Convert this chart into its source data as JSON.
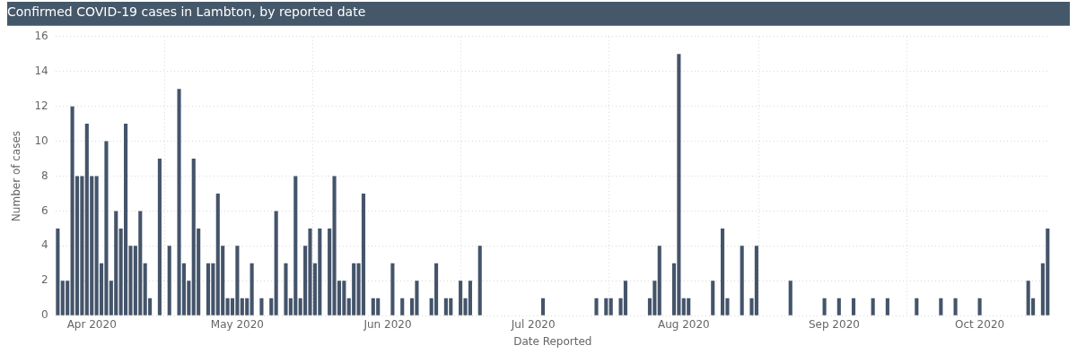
{
  "chart_data": {
    "type": "bar",
    "title": "Confirmed COVID-19 cases in Lambton, by reported date",
    "xlabel": "Date Reported",
    "ylabel": "Number of cases",
    "color": "#44546a",
    "x": [
      "2020-03-25",
      "2020-03-26",
      "2020-03-27",
      "2020-03-28",
      "2020-03-29",
      "2020-03-30",
      "2020-03-31",
      "2020-04-01",
      "2020-04-02",
      "2020-04-03",
      "2020-04-04",
      "2020-04-05",
      "2020-04-06",
      "2020-04-07",
      "2020-04-08",
      "2020-04-09",
      "2020-04-10",
      "2020-04-11",
      "2020-04-12",
      "2020-04-13",
      "2020-04-15",
      "2020-04-17",
      "2020-04-19",
      "2020-04-20",
      "2020-04-21",
      "2020-04-22",
      "2020-04-23",
      "2020-04-25",
      "2020-04-26",
      "2020-04-27",
      "2020-04-28",
      "2020-04-29",
      "2020-04-30",
      "2020-05-01",
      "2020-05-02",
      "2020-05-03",
      "2020-05-04",
      "2020-05-06",
      "2020-05-08",
      "2020-05-09",
      "2020-05-11",
      "2020-05-12",
      "2020-05-13",
      "2020-05-14",
      "2020-05-15",
      "2020-05-16",
      "2020-05-17",
      "2020-05-18",
      "2020-05-20",
      "2020-05-21",
      "2020-05-22",
      "2020-05-23",
      "2020-05-24",
      "2020-05-25",
      "2020-05-26",
      "2020-05-27",
      "2020-05-29",
      "2020-05-30",
      "2020-06-02",
      "2020-06-04",
      "2020-06-06",
      "2020-06-07",
      "2020-06-10",
      "2020-06-11",
      "2020-06-13",
      "2020-06-14",
      "2020-06-16",
      "2020-06-17",
      "2020-06-18",
      "2020-06-20",
      "2020-07-03",
      "2020-07-14",
      "2020-07-16",
      "2020-07-17",
      "2020-07-19",
      "2020-07-20",
      "2020-07-25",
      "2020-07-26",
      "2020-07-27",
      "2020-07-30",
      "2020-07-31",
      "2020-08-01",
      "2020-08-02",
      "2020-08-07",
      "2020-08-09",
      "2020-08-10",
      "2020-08-13",
      "2020-08-15",
      "2020-08-16",
      "2020-08-23",
      "2020-08-30",
      "2020-09-02",
      "2020-09-05",
      "2020-09-09",
      "2020-09-12",
      "2020-09-18",
      "2020-09-23",
      "2020-09-26",
      "2020-10-01",
      "2020-10-11",
      "2020-10-12",
      "2020-10-14",
      "2020-10-15"
    ],
    "values": [
      5,
      2,
      2,
      12,
      8,
      8,
      11,
      8,
      8,
      3,
      10,
      2,
      6,
      5,
      11,
      4,
      4,
      6,
      3,
      1,
      9,
      4,
      13,
      3,
      2,
      9,
      5,
      3,
      3,
      7,
      4,
      1,
      1,
      4,
      1,
      1,
      3,
      1,
      1,
      6,
      3,
      1,
      8,
      1,
      4,
      5,
      3,
      5,
      5,
      8,
      2,
      2,
      1,
      3,
      3,
      7,
      1,
      1,
      3,
      1,
      1,
      2,
      1,
      3,
      1,
      1,
      2,
      1,
      2,
      4,
      1,
      1,
      1,
      1,
      1,
      2,
      1,
      2,
      4,
      3,
      15,
      1,
      1,
      2,
      5,
      1,
      4,
      1,
      4,
      2,
      1,
      1,
      1,
      1,
      1,
      1,
      1,
      1,
      1,
      2,
      1,
      3,
      5
    ],
    "xlim": [
      "2020-03-24T12:00",
      "2020-10-15T12:00"
    ],
    "xticks": [
      {
        "value": "2020-04-01",
        "label": "Apr 2020"
      },
      {
        "value": "2020-05-01",
        "label": "May 2020"
      },
      {
        "value": "2020-06-01",
        "label": "Jun 2020"
      },
      {
        "value": "2020-07-01",
        "label": "Jul 2020"
      },
      {
        "value": "2020-08-01",
        "label": "Aug 2020"
      },
      {
        "value": "2020-09-01",
        "label": "Sep 2020"
      },
      {
        "value": "2020-10-01",
        "label": "Oct 2020"
      }
    ],
    "ylim": [
      0,
      16
    ],
    "yticks": [
      0,
      2,
      4,
      6,
      8,
      10,
      12,
      14,
      16
    ],
    "grid": true
  }
}
